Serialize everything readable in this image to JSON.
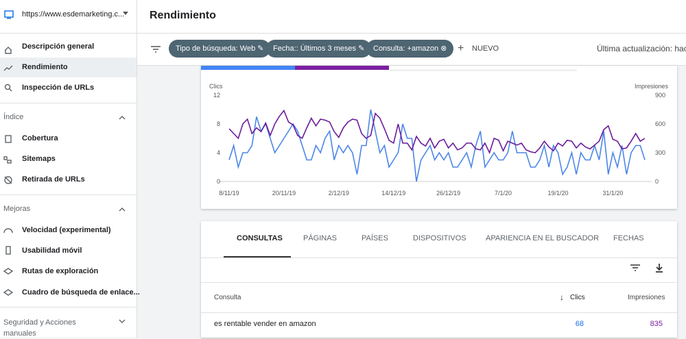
{
  "sidebar": {
    "property": "https://www.esdemarketing.c...",
    "top_items": [
      "Descripción general",
      "Rendimiento",
      "Inspección de URLs"
    ],
    "sections": [
      {
        "title": "Índice",
        "items": [
          "Cobertura",
          "Sitemaps",
          "Retirada de URLs"
        ]
      },
      {
        "title": "Mejoras",
        "items": [
          "Velocidad (experimental)",
          "Usabilidad móvil",
          "Rutas de exploración",
          "Cuadro de búsqueda de enlace..."
        ]
      },
      {
        "title": "Seguridad y Acciones manuales"
      }
    ]
  },
  "header": {
    "title": "Rendimiento"
  },
  "filters": {
    "chips": [
      "Tipo de búsqueda: Web",
      "Fecha:: Últimos 3 meses",
      "Consulta: +amazon"
    ],
    "new": "NUEVO",
    "last_update": "Última actualización: hace"
  },
  "chart_data": {
    "type": "line",
    "y_label": "Clics",
    "y2_label": "Impresiones",
    "categories": [
      "8/11/19",
      null,
      null,
      null,
      null,
      null,
      null,
      null,
      null,
      null,
      null,
      null,
      "20/11/19",
      null,
      null,
      null,
      null,
      null,
      null,
      null,
      null,
      null,
      null,
      null,
      "2/12/19",
      null,
      null,
      null,
      null,
      null,
      null,
      null,
      null,
      null,
      null,
      null,
      "14/12/19",
      null,
      null,
      null,
      null,
      null,
      null,
      null,
      null,
      null,
      null,
      null,
      "26/12/19",
      null,
      null,
      null,
      null,
      null,
      null,
      null,
      null,
      null,
      null,
      null,
      "7/1/20",
      null,
      null,
      null,
      null,
      null,
      null,
      null,
      null,
      null,
      null,
      null,
      "19/1/20",
      null,
      null,
      null,
      null,
      null,
      null,
      null,
      null,
      null,
      null,
      null,
      "31/1/20",
      null,
      null,
      null,
      null,
      null,
      null,
      null
    ],
    "ylim": [
      0,
      12
    ],
    "yticks": [
      0,
      4,
      8,
      12
    ],
    "y2lim": [
      0,
      900
    ],
    "y2ticks": [
      0,
      300,
      600,
      900
    ],
    "series": [
      {
        "color": "#4a86e8",
        "values": [
          3,
          5,
          2,
          4,
          4,
          5,
          9,
          7,
          8,
          6,
          4,
          5,
          6,
          7,
          8,
          7,
          5,
          3,
          3,
          5,
          4,
          6,
          7,
          3,
          5,
          4,
          5,
          4,
          1,
          5,
          5,
          10,
          7,
          4,
          5,
          2,
          3,
          4,
          8,
          6,
          6,
          0,
          3,
          4,
          5,
          3,
          4,
          3,
          4,
          2,
          2,
          3,
          4,
          2,
          5,
          7,
          2,
          3,
          4,
          3,
          3,
          4,
          7,
          4,
          4,
          4,
          2,
          2,
          3,
          5,
          2,
          5,
          4,
          1,
          2,
          4,
          1,
          4,
          3,
          3,
          5,
          3,
          7,
          1,
          4,
          2,
          5,
          1,
          4,
          5,
          5,
          3
        ]
      },
      {
        "color": "#6a1b9a",
        "axis": "y2",
        "values": [
          550,
          500,
          450,
          600,
          650,
          500,
          560,
          520,
          610,
          480,
          600,
          680,
          740,
          620,
          590,
          480,
          450,
          560,
          660,
          580,
          650,
          640,
          620,
          520,
          460,
          560,
          620,
          650,
          640,
          500,
          450,
          480,
          710,
          660,
          550,
          430,
          400,
          600,
          400,
          400,
          330,
          470,
          400,
          370,
          450,
          350,
          420,
          440,
          350,
          400,
          330,
          350,
          400,
          400,
          340,
          330,
          400,
          300,
          450,
          430,
          320,
          420,
          400,
          380,
          400,
          330,
          310,
          300,
          350,
          420,
          360,
          320,
          400,
          370,
          430,
          420,
          350,
          400,
          360,
          340,
          380,
          420,
          540,
          580,
          440,
          420,
          340,
          350,
          420,
          500,
          420,
          450
        ]
      }
    ]
  },
  "table": {
    "tabs": [
      "CONSULTAS",
      "PÁGINAS",
      "PAÍSES",
      "DISPOSITIVOS",
      "APARIENCIA EN EL BUSCADOR",
      "FECHAS"
    ],
    "columns": [
      "Consulta",
      "Clics",
      "Impresiones"
    ],
    "rows": [
      [
        "es rentable vender en amazon",
        68,
        835
      ]
    ]
  }
}
